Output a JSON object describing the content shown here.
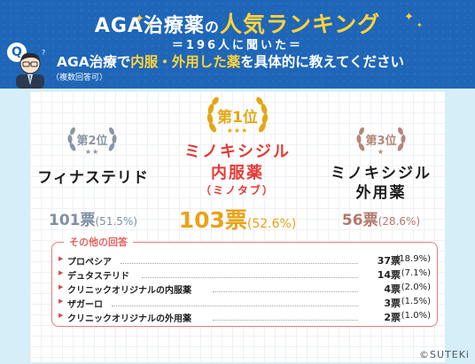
{
  "header": {
    "title_pre": "AGA治療薬",
    "title_no": "の",
    "title_em": "人気ランキング",
    "subtitle": "＝196人に聞いた＝",
    "question_pre": "AGA治療で",
    "question_hl": "内服・外用した薬",
    "question_post": "を具体的に教えてください",
    "question_note": "（複数回答可）",
    "q_badge": "Q"
  },
  "ranking": {
    "first": {
      "rank_num": "第1位",
      "drug_line1": "ミノキシジル",
      "drug_line2": "内服薬",
      "drug_sub": "（ミノタブ）",
      "votes": "103票",
      "percent": "(52.6%)"
    },
    "second": {
      "rank_num": "第2位",
      "drug": "フィナステリド",
      "votes": "101票",
      "percent": "(51.5%)"
    },
    "third": {
      "rank_num": "第3位",
      "drug_line1": "ミノキシジル",
      "drug_line2": "外用薬",
      "votes": "56票",
      "percent": "(28.6%)"
    }
  },
  "others": {
    "title": "その他の回答",
    "items": [
      {
        "name": "プロペシア",
        "votes": "37票",
        "percent": "(18.9%)"
      },
      {
        "name": "デュタステリド",
        "votes": "14票",
        "percent": "(7.1%)"
      },
      {
        "name": "クリニックオリジナルの内服薬",
        "votes": "4票",
        "percent": "(2.0%)"
      },
      {
        "name": "ザガーロ",
        "votes": "3票",
        "percent": "(1.5%)"
      },
      {
        "name": "クリニックオリジナルの外用薬",
        "votes": "2票",
        "percent": "(1.0%)"
      }
    ]
  },
  "credit": "©SUTEKi",
  "colors": {
    "header_blue": "#1f66b8",
    "gold": "#e5a614",
    "gold_text": "#e8a317",
    "red": "#e53935",
    "silver": "#8b96a6",
    "silver_votes": "#7f8fa3",
    "bronze": "#b58677",
    "bronze_votes": "#b2786a",
    "others_border": "#e27f7b"
  },
  "icons": [
    "sparkle-icon",
    "q-badge-icon",
    "person-thinking-icon",
    "laurel-wreath-icon",
    "star-icon",
    "bullet-triangle-icon"
  ]
}
